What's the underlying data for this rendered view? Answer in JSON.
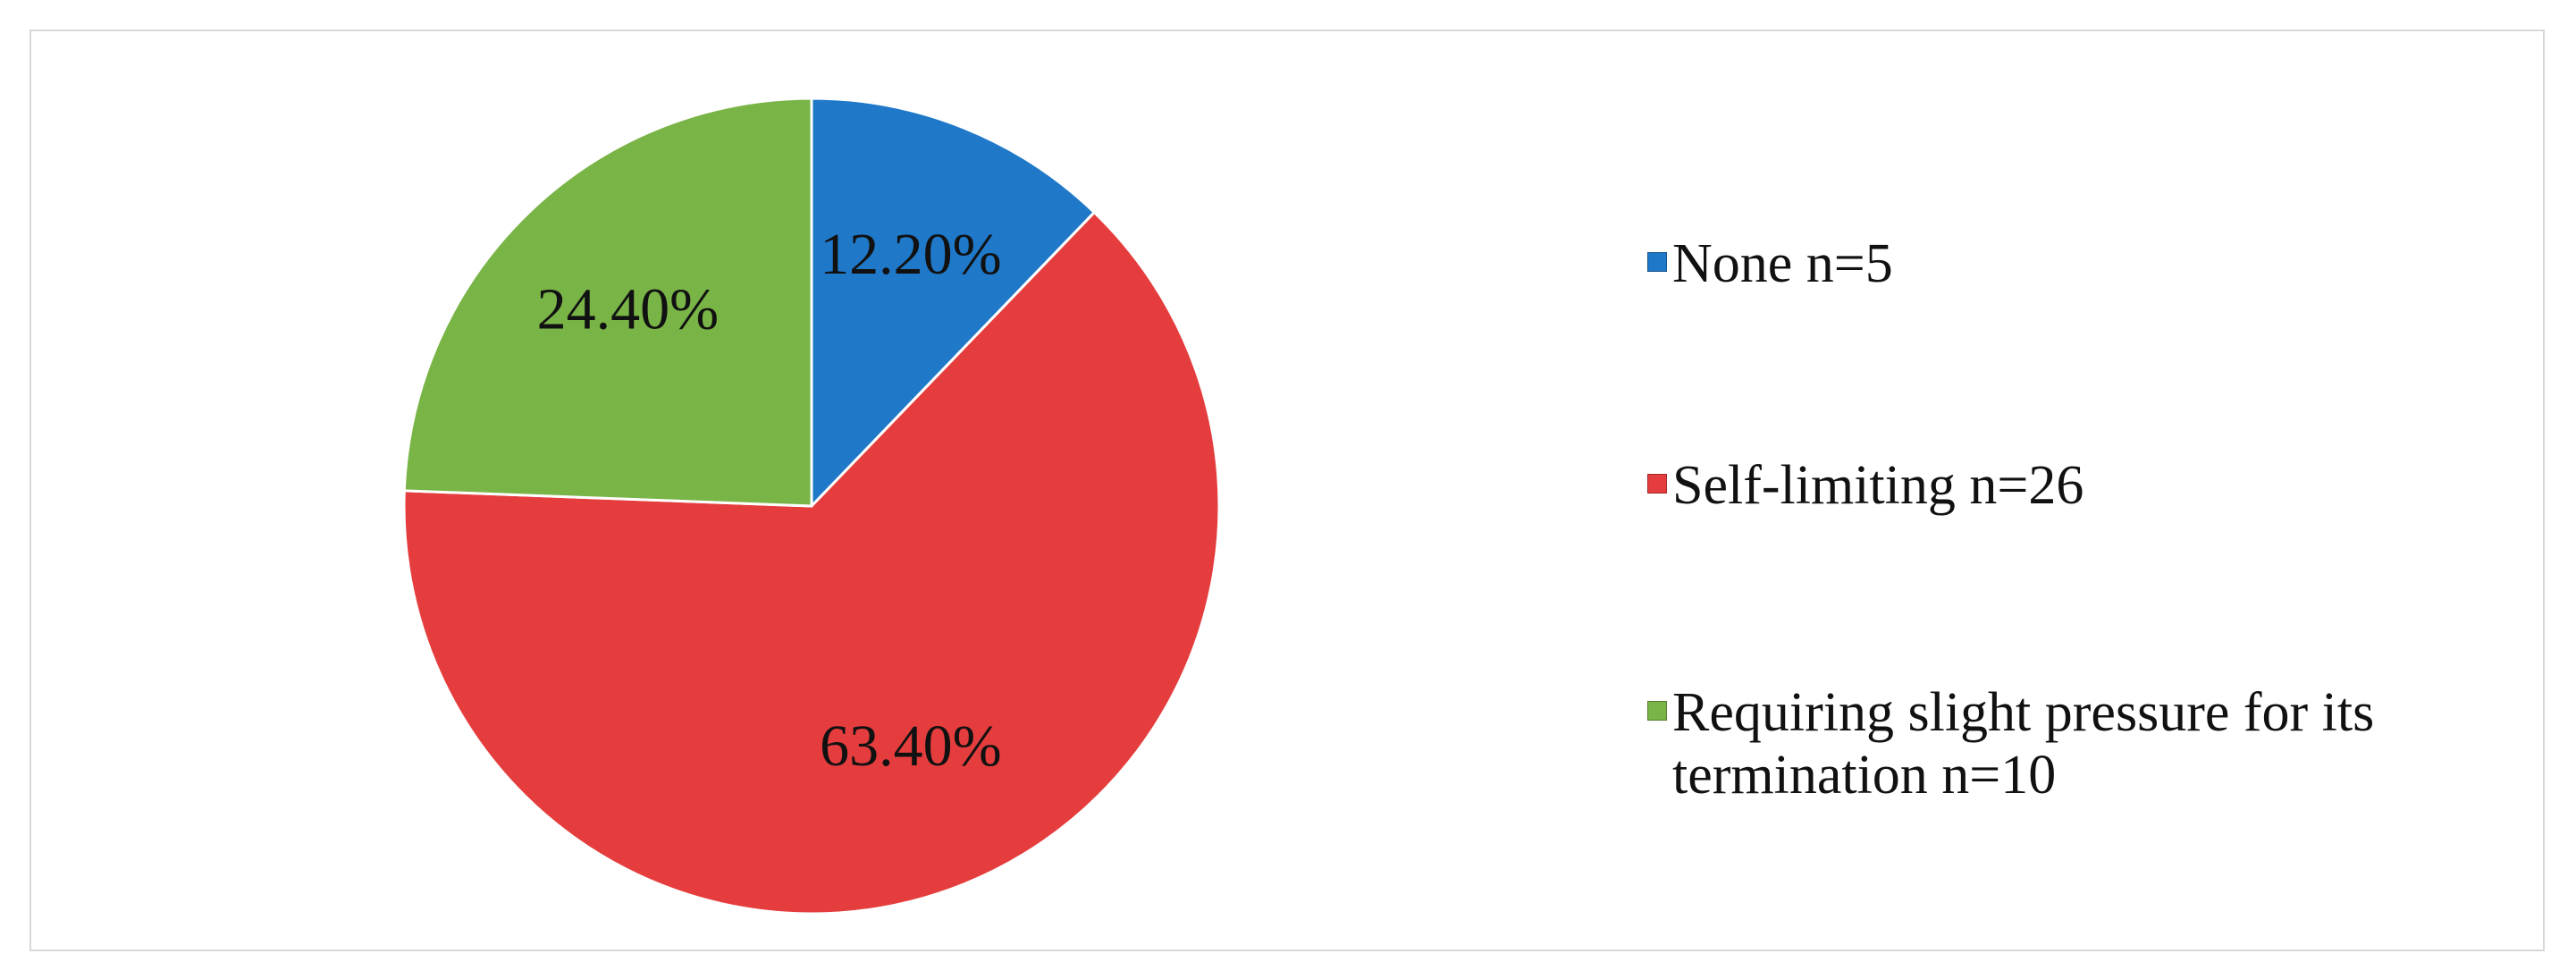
{
  "chart_data": {
    "type": "pie",
    "categories": [
      "None n=5",
      "Self-limiting n=26",
      "Requiring slight pressure for its termination n=10"
    ],
    "values": [
      12.2,
      63.4,
      24.4
    ],
    "value_labels": [
      "12.20%",
      "63.40%",
      "24.40%"
    ],
    "colors": [
      "#1f78c8",
      "#e53d3d",
      "#79b447"
    ],
    "legend": "right"
  }
}
